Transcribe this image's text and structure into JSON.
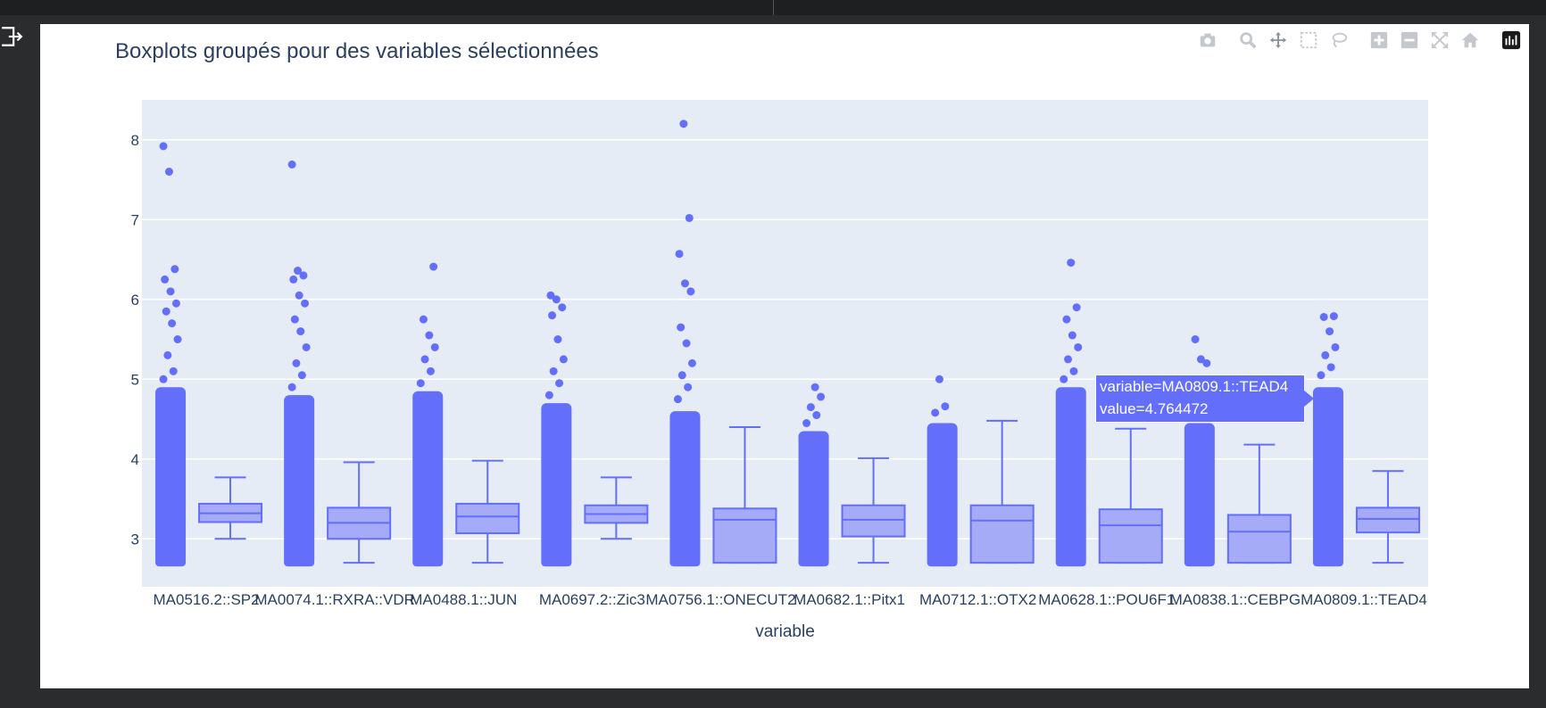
{
  "window": {
    "exit_icon": "exit-to-app-icon"
  },
  "modebar": {
    "icons": [
      "camera-icon",
      "zoom-icon",
      "pan-icon",
      "box-select-icon",
      "lasso-icon",
      "zoom-in-icon",
      "zoom-out-icon",
      "autoscale-icon",
      "reset-axes-icon",
      "plotly-logo-icon"
    ]
  },
  "chart_data": {
    "type": "box",
    "title": "Boxplots groupés pour des variables sélectionnées",
    "xlabel": "variable",
    "ylabel": "",
    "ylim": [
      2.4,
      8.5
    ],
    "yticks": [
      3,
      4,
      5,
      6,
      7,
      8
    ],
    "grid": true,
    "points": "all",
    "color": "#636efa",
    "plot_bg": "#e5ecf6",
    "categories": [
      "MA0516.2::SP2",
      "MA0074.1::RXRA::VDR",
      "MA0488.1::JUN",
      "MA0697.2::Zic3",
      "MA0756.1::ONECUT2",
      "MA0682.1::Pitx1",
      "MA0712.1::OTX2",
      "MA0628.1::POU6F1",
      "MA0838.1::CEBPG",
      "MA0809.1::TEAD4"
    ],
    "boxes": [
      {
        "min": 3.0,
        "q1": 3.21,
        "median": 3.32,
        "q3": 3.44,
        "max": 3.77,
        "pts_low": 2.7,
        "pts_high": 4.9,
        "outliers": [
          5.0,
          5.1,
          5.3,
          5.5,
          5.7,
          5.85,
          5.95,
          6.1,
          6.25,
          6.38,
          7.6,
          7.92
        ]
      },
      {
        "min": 2.7,
        "q1": 3.0,
        "median": 3.2,
        "q3": 3.39,
        "max": 3.96,
        "pts_low": 2.7,
        "pts_high": 4.8,
        "outliers": [
          4.9,
          5.05,
          5.2,
          5.4,
          5.6,
          5.75,
          5.95,
          6.05,
          6.25,
          6.3,
          6.36,
          7.69
        ]
      },
      {
        "min": 2.7,
        "q1": 3.07,
        "median": 3.28,
        "q3": 3.44,
        "max": 3.98,
        "pts_low": 2.7,
        "pts_high": 4.85,
        "outliers": [
          4.95,
          5.1,
          5.25,
          5.4,
          5.55,
          5.75,
          6.41
        ]
      },
      {
        "min": 3.0,
        "q1": 3.2,
        "median": 3.31,
        "q3": 3.42,
        "max": 3.77,
        "pts_low": 2.7,
        "pts_high": 4.7,
        "outliers": [
          4.8,
          4.95,
          5.1,
          5.25,
          5.5,
          5.8,
          5.9,
          6.0,
          6.05
        ]
      },
      {
        "min": 2.7,
        "q1": 2.7,
        "median": 3.24,
        "q3": 3.38,
        "max": 4.4,
        "pts_low": 2.7,
        "pts_high": 4.6,
        "outliers": [
          4.75,
          4.9,
          5.05,
          5.2,
          5.45,
          5.65,
          6.1,
          6.2,
          6.57,
          7.02,
          8.2
        ]
      },
      {
        "min": 2.7,
        "q1": 3.03,
        "median": 3.24,
        "q3": 3.42,
        "max": 4.01,
        "pts_low": 2.7,
        "pts_high": 4.35,
        "outliers": [
          4.45,
          4.55,
          4.65,
          4.78,
          4.9
        ]
      },
      {
        "min": 2.7,
        "q1": 2.7,
        "median": 3.23,
        "q3": 3.42,
        "max": 4.48,
        "pts_low": 2.7,
        "pts_high": 4.45,
        "outliers": [
          4.58,
          4.66,
          5.0
        ]
      },
      {
        "min": 2.7,
        "q1": 2.7,
        "median": 3.17,
        "q3": 3.37,
        "max": 4.38,
        "pts_low": 2.7,
        "pts_high": 4.9,
        "outliers": [
          5.0,
          5.1,
          5.25,
          5.4,
          5.55,
          5.75,
          5.9,
          6.46
        ]
      },
      {
        "min": 2.7,
        "q1": 2.7,
        "median": 3.09,
        "q3": 3.3,
        "max": 4.18,
        "pts_low": 2.7,
        "pts_high": 4.45,
        "outliers": [
          4.55,
          4.7,
          4.76,
          5.2,
          5.25,
          5.5
        ]
      },
      {
        "min": 2.7,
        "q1": 3.08,
        "median": 3.25,
        "q3": 3.39,
        "max": 3.85,
        "pts_low": 2.7,
        "pts_high": 4.9,
        "outliers": [
          5.05,
          5.15,
          5.3,
          5.4,
          5.6,
          5.78,
          5.79
        ]
      }
    ]
  },
  "tooltip": {
    "line1": "variable=MA0809.1::TEAD4",
    "line2": "value=4.764472"
  }
}
